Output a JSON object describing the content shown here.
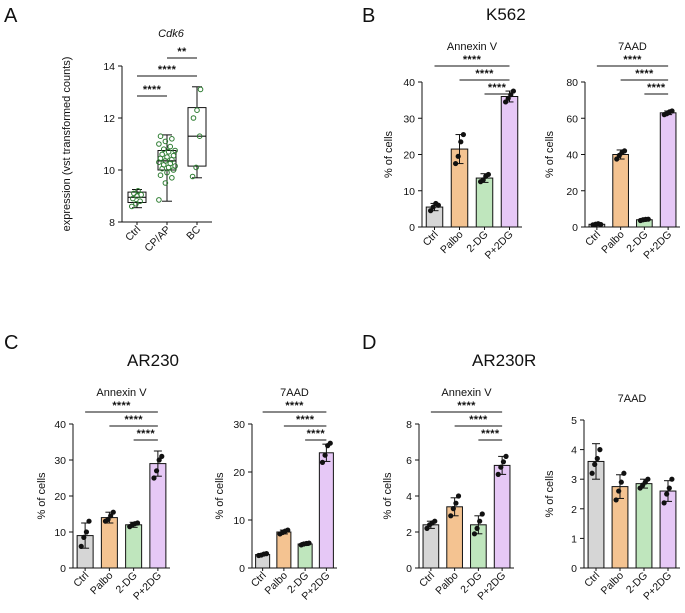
{
  "panels": {
    "A": {
      "letter": "A"
    },
    "B": {
      "letter": "B",
      "title": "K562"
    },
    "C": {
      "letter": "C",
      "title": "AR230"
    },
    "D": {
      "letter": "D",
      "title": "AR230R"
    }
  },
  "colors": {
    "Ctrl": "#d6d6d6",
    "Palbo": "#f4c391",
    "2-DG": "#bfe6bd",
    "P+2DG": "#e6c8f6",
    "boxA": "#2e7d32"
  },
  "chart_data": [
    {
      "id": "A",
      "type": "box",
      "title": "Cdk6",
      "ylabel": "expression (vst transformed counts)",
      "categories": [
        "Ctrl",
        "CP/AP",
        "BC"
      ],
      "ylim": [
        8,
        14
      ],
      "yticks": [
        8,
        10,
        12,
        14
      ],
      "boxes": [
        {
          "min": 8.55,
          "q1": 8.75,
          "median": 8.95,
          "q3": 9.15,
          "max": 9.25,
          "points": [
            8.6,
            8.7,
            8.8,
            8.9,
            9.0,
            9.05,
            9.1,
            9.2
          ]
        },
        {
          "min": 8.8,
          "q1": 10.0,
          "median": 10.35,
          "q3": 10.75,
          "max": 11.35,
          "points": [
            8.85,
            9.5,
            9.7,
            9.8,
            9.9,
            10.0,
            10.05,
            10.1,
            10.15,
            10.2,
            10.25,
            10.3,
            10.35,
            10.4,
            10.45,
            10.5,
            10.55,
            10.6,
            10.7,
            10.75,
            10.8,
            10.9,
            11.0,
            11.1,
            11.2,
            11.3
          ]
        },
        {
          "min": 9.7,
          "q1": 10.15,
          "median": 11.3,
          "q3": 12.4,
          "max": 13.2,
          "points": [
            9.75,
            10.1,
            11.3,
            12.0,
            12.3,
            13.1
          ]
        }
      ],
      "significance": [
        {
          "from": 0,
          "to": 1,
          "label": "****"
        },
        {
          "from": 0,
          "to": 2,
          "label": "****"
        },
        {
          "from": 1,
          "to": 2,
          "label": "**"
        }
      ]
    },
    {
      "id": "B1",
      "type": "bar",
      "panel": "B",
      "title": "Annexin V",
      "ylabel": "% of cells",
      "categories": [
        "Ctrl",
        "Palbo",
        "2-DG",
        "P+2DG"
      ],
      "values": [
        5.5,
        21.5,
        13.5,
        36
      ],
      "errors": [
        1.0,
        4.0,
        1.2,
        1.5
      ],
      "points": [
        [
          4.5,
          5.5,
          6.5,
          6.0
        ],
        [
          17.5,
          19.5,
          23.5,
          25.5
        ],
        [
          12.5,
          13.0,
          14.0,
          14.5
        ],
        [
          34.5,
          35.5,
          36.5,
          37.5
        ]
      ],
      "ylim": [
        0,
        40
      ],
      "yticks": [
        0,
        10,
        20,
        30,
        40
      ],
      "significance": [
        {
          "from": 0,
          "to": 3,
          "label": "****"
        },
        {
          "from": 1,
          "to": 3,
          "label": "****"
        },
        {
          "from": 2,
          "to": 3,
          "label": "****"
        }
      ]
    },
    {
      "id": "B2",
      "type": "bar",
      "panel": "B",
      "title": "7AAD",
      "ylabel": "% of cells",
      "categories": [
        "Ctrl",
        "Palbo",
        "2-DG",
        "P+2DG"
      ],
      "values": [
        1.5,
        40,
        4,
        63
      ],
      "errors": [
        0.4,
        2.5,
        0.5,
        1.0
      ],
      "points": [
        [
          1.2,
          1.5,
          1.8,
          1.4
        ],
        [
          37.5,
          39.5,
          41.0,
          42.0
        ],
        [
          3.6,
          4.0,
          4.2,
          4.3
        ],
        [
          62.0,
          62.5,
          63.5,
          64.0
        ]
      ],
      "ylim": [
        0,
        80
      ],
      "yticks": [
        0,
        20,
        40,
        60,
        80
      ],
      "significance": [
        {
          "from": 0,
          "to": 3,
          "label": "****"
        },
        {
          "from": 1,
          "to": 3,
          "label": "****"
        },
        {
          "from": 2,
          "to": 3,
          "label": "****"
        }
      ]
    },
    {
      "id": "C1",
      "type": "bar",
      "panel": "C",
      "title": "Annexin V",
      "ylabel": "% of cells",
      "categories": [
        "Ctrl",
        "Palbo",
        "2-DG",
        "P+2DG"
      ],
      "values": [
        9,
        14,
        12,
        29
      ],
      "errors": [
        3.5,
        1.5,
        0.7,
        3.5
      ],
      "points": [
        [
          6.0,
          8.5,
          10.0,
          13.0
        ],
        [
          13.0,
          13.5,
          14.5,
          15.5
        ],
        [
          11.5,
          12.0,
          12.3,
          12.5
        ],
        [
          25.0,
          27.0,
          30.0,
          31.0
        ]
      ],
      "ylim": [
        0,
        40
      ],
      "yticks": [
        0,
        10,
        20,
        30,
        40
      ],
      "significance": [
        {
          "from": 0,
          "to": 3,
          "label": "****"
        },
        {
          "from": 1,
          "to": 3,
          "label": "****"
        },
        {
          "from": 2,
          "to": 3,
          "label": "****"
        }
      ]
    },
    {
      "id": "C2",
      "type": "bar",
      "panel": "C",
      "title": "7AAD",
      "ylabel": "% of cells",
      "categories": [
        "Ctrl",
        "Palbo",
        "2-DG",
        "P+2DG"
      ],
      "values": [
        2.8,
        7.5,
        5,
        24
      ],
      "errors": [
        0.2,
        0.4,
        0.3,
        1.8
      ],
      "points": [
        [
          2.6,
          2.7,
          2.9,
          3.0
        ],
        [
          7.1,
          7.4,
          7.7,
          7.9
        ],
        [
          4.8,
          5.0,
          5.1,
          5.2
        ],
        [
          22.0,
          23.5,
          25.5,
          26.0
        ]
      ],
      "ylim": [
        0,
        30
      ],
      "yticks": [
        0,
        10,
        20,
        30
      ],
      "significance": [
        {
          "from": 0,
          "to": 3,
          "label": "****"
        },
        {
          "from": 1,
          "to": 3,
          "label": "****"
        },
        {
          "from": 2,
          "to": 3,
          "label": "****"
        }
      ]
    },
    {
      "id": "D1",
      "type": "bar",
      "panel": "D",
      "title": "Annexin V",
      "ylabel": "% of cells",
      "categories": [
        "Ctrl",
        "Palbo",
        "2-DG",
        "P+2DG"
      ],
      "values": [
        2.4,
        3.4,
        2.4,
        5.7
      ],
      "errors": [
        0.2,
        0.5,
        0.5,
        0.5
      ],
      "points": [
        [
          2.2,
          2.4,
          2.5,
          2.6
        ],
        [
          2.9,
          3.3,
          3.6,
          4.0
        ],
        [
          1.9,
          2.2,
          2.6,
          3.0
        ],
        [
          5.2,
          5.6,
          5.9,
          6.2
        ]
      ],
      "ylim": [
        0,
        8
      ],
      "yticks": [
        0,
        2,
        4,
        6,
        8
      ],
      "significance": [
        {
          "from": 0,
          "to": 3,
          "label": "****"
        },
        {
          "from": 1,
          "to": 3,
          "label": "****"
        },
        {
          "from": 2,
          "to": 3,
          "label": "****"
        }
      ]
    },
    {
      "id": "D2",
      "type": "bar",
      "panel": "D",
      "title": "7AAD",
      "ylabel": "% of cells",
      "categories": [
        "Ctrl",
        "Palbo",
        "2-DG",
        "P+2DG"
      ],
      "values": [
        3.6,
        2.75,
        2.85,
        2.6
      ],
      "errors": [
        0.6,
        0.4,
        0.15,
        0.35
      ],
      "points": [
        [
          3.2,
          3.5,
          3.7,
          4.0
        ],
        [
          2.3,
          2.6,
          2.9,
          3.2
        ],
        [
          2.7,
          2.8,
          2.9,
          3.0
        ],
        [
          2.2,
          2.5,
          2.7,
          3.0
        ]
      ],
      "ylim": [
        0,
        5
      ],
      "yticks": [
        0,
        1,
        2,
        3,
        4,
        5
      ],
      "significance": []
    }
  ]
}
